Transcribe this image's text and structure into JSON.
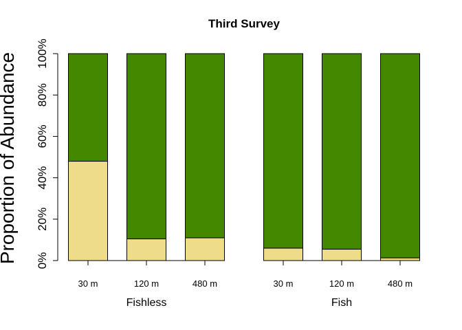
{
  "chart_data": {
    "type": "bar",
    "stacked": true,
    "percent": true,
    "title": "Third Survey",
    "ylabel": "Proportion of Abundance",
    "xlabel": "",
    "ylim": [
      0,
      100
    ],
    "yticks": [
      "0%",
      "20%",
      "40%",
      "60%",
      "80%",
      "100%"
    ],
    "yticks_values": [
      0,
      20,
      40,
      60,
      80,
      100
    ],
    "groups": [
      {
        "name": "Fishless",
        "categories": [
          "30 m",
          "120 m",
          "480 m"
        ]
      },
      {
        "name": "Fish",
        "categories": [
          "30 m",
          "120 m",
          "480 m"
        ]
      }
    ],
    "series": [
      {
        "color": "#EEDC8A",
        "values": [
          48,
          10.5,
          11,
          6,
          5.5,
          1.3
        ]
      },
      {
        "color": "#448800",
        "values": [
          52,
          89.5,
          89,
          94,
          94.5,
          98.7
        ]
      }
    ]
  }
}
